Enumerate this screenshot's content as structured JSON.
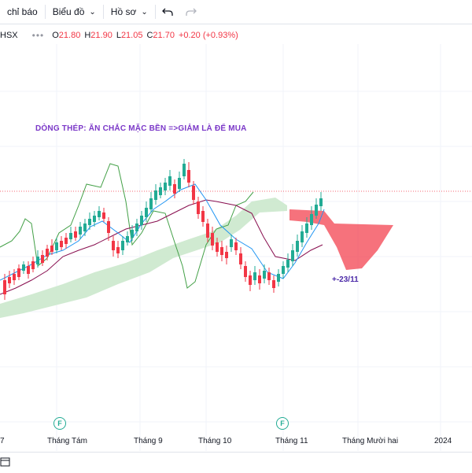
{
  "toolbar": {
    "indicators_label": "chỉ báo",
    "charts_label": "Biểu đồ",
    "profile_label": "Hồ sơ",
    "undo_icon": "undo-icon",
    "redo_icon": "redo-icon"
  },
  "legend": {
    "symbol": "HSX",
    "open_label": "O",
    "open": "21.80",
    "high_label": "H",
    "high": "21.90",
    "low_label": "L",
    "low": "21.05",
    "close_label": "C",
    "close": "21.70",
    "change": "+0.20 (+0.93%)"
  },
  "annotation": "DÒNG THÉP: ĂN CHẮC MẶC BỀN =>GIẢM LÀ ĐỂ MUA",
  "note": "+-23/11",
  "time_axis": {
    "labels": [
      "7",
      "Tháng Tám",
      "Tháng 9",
      "Tháng 10",
      "Tháng 11",
      "Tháng Mười hai",
      "2024"
    ]
  },
  "event_marker": "F",
  "colors": {
    "up": "#22ab94",
    "down": "#f23645",
    "ma_fast": "#2196f3",
    "kijun": "#880e4f",
    "chikou": "#43a047",
    "cloud_bull": "#c8e6c9",
    "cloud_bear": "#f23645",
    "annotation": "#7b38c8"
  }
}
